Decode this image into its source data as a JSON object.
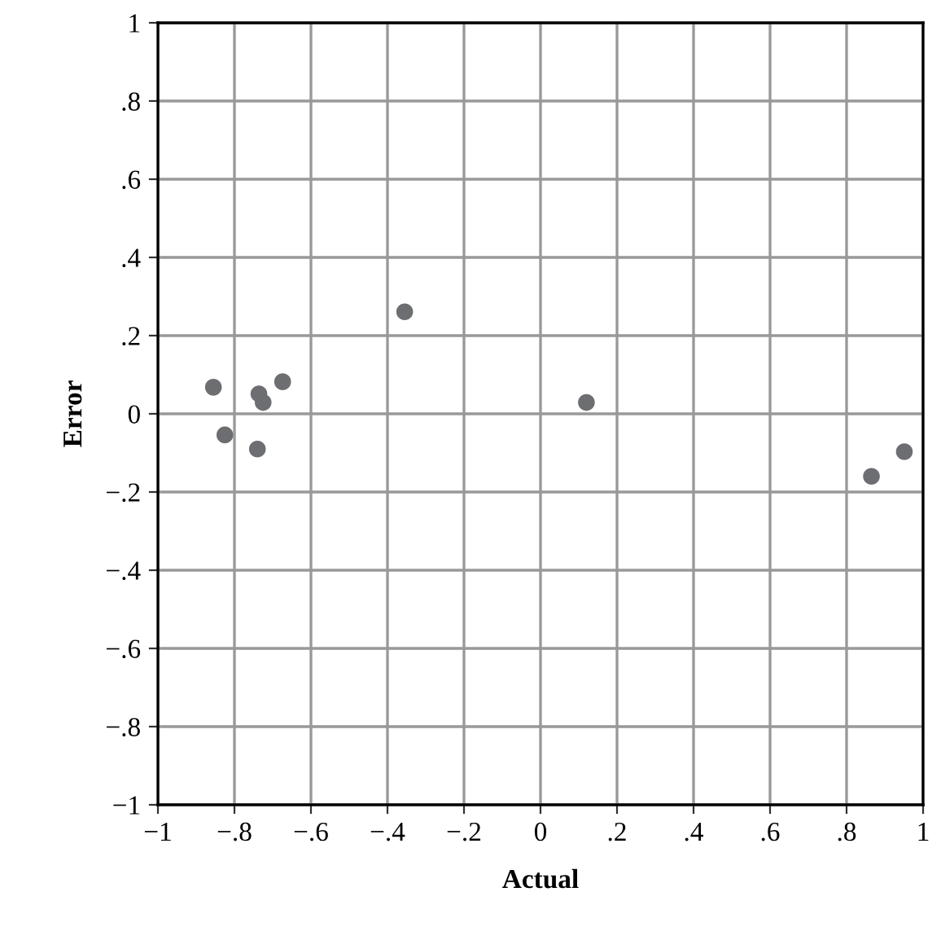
{
  "chart_data": {
    "type": "scatter",
    "xlabel": "Actual",
    "ylabel": "Error",
    "x": [
      -0.855,
      -0.825,
      -0.736,
      -0.725,
      -0.674,
      -0.74,
      -0.355,
      0.12,
      0.865,
      0.951
    ],
    "series": [
      {
        "color": "#6d6e71",
        "values": [
          0.068,
          -0.054,
          0.051,
          0.029,
          0.082,
          -0.09,
          0.261,
          0.029,
          -0.16,
          -0.097
        ]
      }
    ],
    "xlim": [
      -1,
      1
    ],
    "ylim": [
      -1,
      1
    ],
    "xticks": [
      {
        "value": -1,
        "label": "−1"
      },
      {
        "value": -0.8,
        "label": "−.8"
      },
      {
        "value": -0.6,
        "label": "−.6"
      },
      {
        "value": -0.4,
        "label": "−.4"
      },
      {
        "value": -0.2,
        "label": "−.2"
      },
      0,
      {
        "value": 0.2,
        "label": ".2"
      },
      {
        "value": 0.4,
        "label": ".4"
      },
      {
        "value": 0.6,
        "label": ".6"
      },
      {
        "value": 0.8,
        "label": ".8"
      },
      1
    ],
    "yticks": [
      {
        "value": -1,
        "label": "−1"
      },
      {
        "value": -0.8,
        "label": "−.8"
      },
      {
        "value": -0.6,
        "label": "−.6"
      },
      {
        "value": -0.4,
        "label": "−.4"
      },
      {
        "value": -0.2,
        "label": "−.2"
      },
      0,
      {
        "value": 0.2,
        "label": ".2"
      },
      {
        "value": 0.4,
        "label": ".4"
      },
      {
        "value": 0.6,
        "label": ".6"
      },
      {
        "value": 0.8,
        "label": ".8"
      },
      1
    ],
    "grid": true,
    "marker": "circle"
  }
}
